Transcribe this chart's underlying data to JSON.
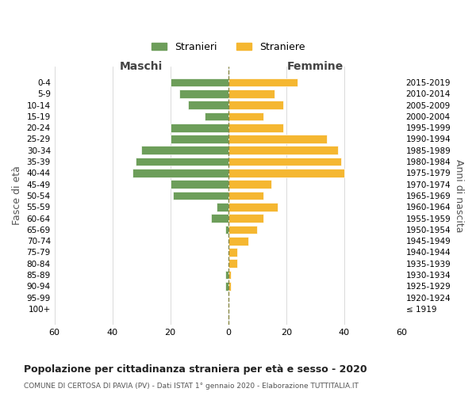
{
  "age_groups": [
    "100+",
    "95-99",
    "90-94",
    "85-89",
    "80-84",
    "75-79",
    "70-74",
    "65-69",
    "60-64",
    "55-59",
    "50-54",
    "45-49",
    "40-44",
    "35-39",
    "30-34",
    "25-29",
    "20-24",
    "15-19",
    "10-14",
    "5-9",
    "0-4"
  ],
  "birth_years": [
    "≤ 1919",
    "1920-1924",
    "1925-1929",
    "1930-1934",
    "1935-1939",
    "1940-1944",
    "1945-1949",
    "1950-1954",
    "1955-1959",
    "1960-1964",
    "1965-1969",
    "1970-1974",
    "1975-1979",
    "1980-1984",
    "1985-1989",
    "1990-1994",
    "1995-1999",
    "2000-2004",
    "2005-2009",
    "2010-2014",
    "2015-2019"
  ],
  "maschi": [
    0,
    0,
    1,
    1,
    0,
    0,
    0,
    1,
    6,
    4,
    19,
    20,
    33,
    32,
    30,
    20,
    20,
    8,
    14,
    17,
    20
  ],
  "femmine": [
    0,
    0,
    1,
    1,
    3,
    3,
    7,
    10,
    12,
    17,
    12,
    15,
    40,
    39,
    38,
    34,
    19,
    12,
    19,
    16,
    24
  ],
  "color_maschi": "#6d9e5a",
  "color_femmine": "#f5b731",
  "title": "Popolazione per cittadinanza straniera per età e sesso - 2020",
  "subtitle": "COMUNE DI CERTOSA DI PAVIA (PV) - Dati ISTAT 1° gennaio 2020 - Elaborazione TUTTITALIA.IT",
  "xlabel_left": "Maschi",
  "xlabel_right": "Femmine",
  "ylabel_left": "Fasce di età",
  "ylabel_right": "Anni di nascita",
  "legend_maschi": "Stranieri",
  "legend_femmine": "Straniere",
  "xlim": 60,
  "background_color": "#ffffff",
  "grid_color": "#cccccc",
  "dashed_line_color": "#888844"
}
